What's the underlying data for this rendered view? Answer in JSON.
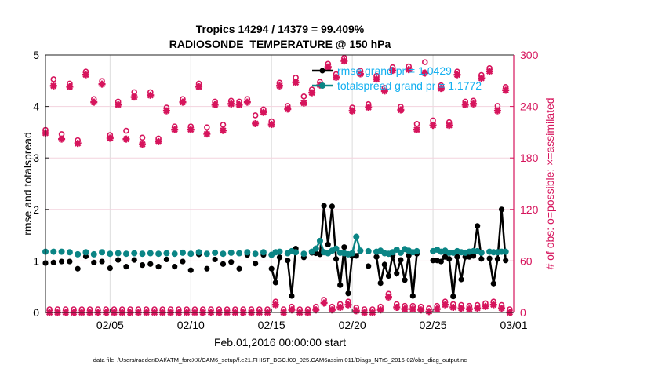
{
  "chart_data": {
    "type": "line",
    "title": [
      "Tropics 14294 / 14379 = 99.409%",
      "RADIOSONDE_TEMPERATURE @ 150 hPa"
    ],
    "xlabel": "Feb.01,2016 00:00:00 start",
    "ylabel_left": "rmse and totalspread",
    "ylabel_right": "# of obs: o=possible; ×=assimilated",
    "footnote": "data file: /Users/raeder/DAI/ATM_forcXX/CAM6_setup/f.e21.FHIST_BGC.f09_025.CAM6assim.011/Diags_NTrS_2016-02/obs_diag_output.nc",
    "x_units": "days since Feb.01,2016 00:00:00",
    "xlim": [
      0,
      29
    ],
    "x_ticks": [
      {
        "day": 4,
        "label": "02/05"
      },
      {
        "day": 9,
        "label": "02/10"
      },
      {
        "day": 14,
        "label": "02/15"
      },
      {
        "day": 19,
        "label": "02/20"
      },
      {
        "day": 24,
        "label": "02/25"
      },
      {
        "day": 29,
        "label": "03/01"
      }
    ],
    "ylim_left": [
      0,
      5
    ],
    "y_ticks_left": [
      "0",
      "1",
      "2",
      "3",
      "4",
      "5"
    ],
    "ylim_right": [
      0,
      300
    ],
    "y_ticks_right": [
      "0",
      "60",
      "120",
      "180",
      "240",
      "300"
    ],
    "grid": true,
    "legend_placement": "top-right",
    "x_step_days": 0.25,
    "colors": {
      "rmse": "#000000",
      "totalspread": "#0a8585",
      "obs": "#d6145c",
      "legend_text": "#14b0f0"
    },
    "series": [
      {
        "name": "rmse",
        "legend": "rmse grand pr = 1.0429",
        "axis": "left",
        "values": [
          0.96,
          null,
          0.97,
          null,
          0.99,
          null,
          0.99,
          null,
          0.85,
          null,
          1.09,
          null,
          0.97,
          null,
          0.99,
          null,
          0.86,
          null,
          1.02,
          null,
          0.89,
          null,
          1.02,
          null,
          0.92,
          null,
          0.94,
          null,
          0.89,
          null,
          1.03,
          null,
          0.89,
          null,
          0.99,
          null,
          0.82,
          null,
          1.13,
          null,
          0.85,
          null,
          1.03,
          null,
          0.94,
          null,
          0.98,
          null,
          0.85,
          null,
          1.12,
          null,
          0.95,
          null,
          1.12,
          null,
          0.85,
          0.58,
          1.07,
          null,
          1.01,
          0.32,
          1.24,
          null,
          1.07,
          null,
          1.16,
          1.15,
          1.13,
          2.07,
          1.32,
          2.06,
          1.04,
          0.53,
          1.27,
          0.37,
          1.1,
          1.1,
          1.2,
          null,
          0.9,
          null,
          1.08,
          0.57,
          0.93,
          0.71,
          1.11,
          0.76,
          1.02,
          0.63,
          1.11,
          0.32,
          1.14,
          null,
          null,
          null,
          1.01,
          1.01,
          0.99,
          1.08,
          1.04,
          0.31,
          1.08,
          0.64,
          1.08,
          1.08,
          1.1,
          1.68,
          1.04,
          null,
          1.05,
          0.56,
          1.04,
          2.0,
          1.01
        ]
      },
      {
        "name": "totalspread",
        "legend": "totalspread grand pr = 1.1772",
        "axis": "left",
        "values": [
          1.18,
          null,
          1.18,
          null,
          1.18,
          null,
          1.17,
          null,
          1.13,
          null,
          1.17,
          null,
          1.13,
          null,
          1.17,
          null,
          1.14,
          null,
          1.15,
          null,
          1.14,
          null,
          1.15,
          null,
          1.14,
          null,
          1.15,
          null,
          1.14,
          null,
          1.15,
          null,
          1.14,
          null,
          1.16,
          null,
          1.14,
          null,
          1.17,
          null,
          1.14,
          null,
          1.16,
          null,
          1.14,
          null,
          1.16,
          null,
          1.15,
          null,
          1.17,
          null,
          1.14,
          null,
          1.17,
          null,
          1.12,
          1.17,
          1.18,
          null,
          1.15,
          1.19,
          1.17,
          null,
          1.14,
          null,
          1.18,
          1.24,
          1.39,
          1.17,
          1.15,
          1.2,
          1.24,
          1.16,
          1.15,
          1.13,
          1.15,
          1.47,
          1.2,
          null,
          1.19,
          null,
          1.18,
          1.2,
          1.15,
          1.14,
          1.17,
          1.22,
          1.16,
          1.23,
          1.2,
          1.17,
          1.19,
          null,
          null,
          null,
          1.19,
          1.22,
          1.18,
          1.2,
          1.16,
          1.16,
          1.19,
          1.17,
          1.16,
          1.18,
          1.19,
          1.19,
          1.16,
          null,
          1.18,
          1.17,
          1.17,
          1.18,
          1.18
        ]
      },
      {
        "name": "obs_possible",
        "axis": "right",
        "marker": "o",
        "values": [
          209,
          0,
          268,
          0,
          204,
          0,
          263,
          0,
          197,
          0,
          277,
          0,
          245,
          0,
          266,
          0,
          203,
          0,
          242,
          0,
          208,
          0,
          253,
          0,
          200,
          0,
          253,
          0,
          199,
          0,
          235,
          0,
          213,
          0,
          245,
          0,
          213,
          0,
          263,
          0,
          212,
          0,
          242,
          0,
          215,
          0,
          243,
          0,
          242,
          0,
          245,
          0,
          226,
          0,
          233,
          0,
          219,
          9,
          264,
          0,
          237,
          3,
          270,
          0,
          248,
          0,
          256,
          3,
          265,
          11,
          286,
          3,
          274,
          6,
          293,
          9,
          235,
          2,
          278,
          0,
          239,
          0,
          272,
          3,
          258,
          18,
          282,
          6,
          236,
          4,
          283,
          4,
          216,
          3,
          288,
          1,
          220,
          4,
          261,
          9,
          218,
          6,
          277,
          5,
          242,
          4,
          243,
          5,
          273,
          7,
          281,
          9,
          237,
          5,
          259,
          0
        ]
      },
      {
        "name": "obs_assimilated",
        "axis": "right",
        "marker": "*",
        "values": [
          209,
          0,
          264,
          0,
          202,
          0,
          263,
          0,
          197,
          0,
          277,
          0,
          245,
          0,
          266,
          0,
          203,
          0,
          242,
          0,
          202,
          0,
          251,
          0,
          196,
          0,
          253,
          0,
          199,
          0,
          235,
          0,
          213,
          0,
          245,
          0,
          213,
          0,
          263,
          0,
          208,
          0,
          242,
          0,
          212,
          0,
          243,
          0,
          242,
          0,
          245,
          0,
          220,
          0,
          233,
          0,
          219,
          9,
          264,
          0,
          237,
          3,
          268,
          0,
          244,
          0,
          256,
          3,
          265,
          11,
          286,
          3,
          274,
          6,
          293,
          9,
          235,
          2,
          278,
          0,
          239,
          0,
          272,
          3,
          258,
          18,
          282,
          6,
          236,
          4,
          283,
          4,
          213,
          3,
          279,
          1,
          218,
          4,
          261,
          9,
          218,
          6,
          277,
          5,
          242,
          4,
          243,
          5,
          273,
          7,
          281,
          9,
          235,
          5,
          259,
          0
        ]
      }
    ]
  }
}
